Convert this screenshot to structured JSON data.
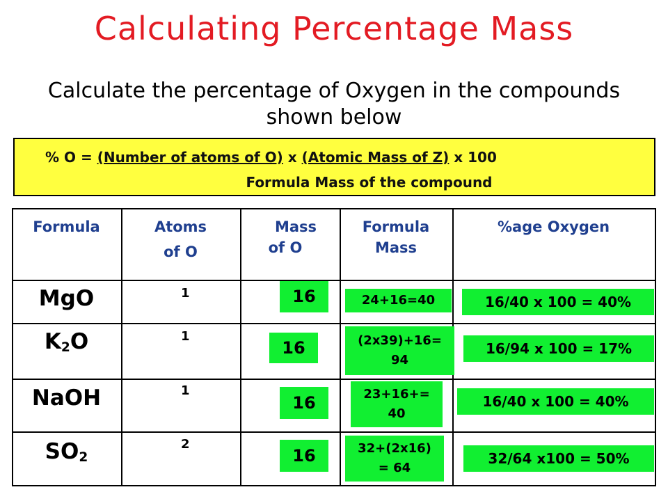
{
  "title": "Calculating Percentage Mass",
  "subtitle": "Calculate the percentage of Oxygen in the compounds shown below",
  "formula": {
    "prefix": "% O = ",
    "numerator_a": "(Number of atoms of O)",
    "times": " x ",
    "numerator_b": "(Atomic Mass of Z)",
    "suffix": " x 100",
    "denominator": "Formula Mass of the compound"
  },
  "table": {
    "headers": {
      "formula": "Formula",
      "atoms_l1": "Atoms",
      "atoms_l2": "of O",
      "mass_l1": "Mass",
      "mass_l2": "of O",
      "fmass_l1": "Formula",
      "fmass_l2": "Mass",
      "pct": "%age Oxygen"
    },
    "rows": [
      {
        "formula_base": "MgO",
        "formula_sub": "",
        "formula_tail": "",
        "atoms": "1",
        "mass": "16",
        "fmass_l1": "24+16=40",
        "fmass_l2": "",
        "pct": "16/40 x 100 = 40%"
      },
      {
        "formula_base": "K",
        "formula_sub": "2",
        "formula_tail": "O",
        "atoms": "1",
        "mass": "16",
        "fmass_l1": "(2x39)+16=",
        "fmass_l2": "94",
        "pct": "16/94 x 100 = 17%"
      },
      {
        "formula_base": "NaOH",
        "formula_sub": "",
        "formula_tail": "",
        "atoms": "1",
        "mass": "16",
        "fmass_l1": "23+16+=",
        "fmass_l2": "40",
        "pct": "16/40 x 100 = 40%"
      },
      {
        "formula_base": "SO",
        "formula_sub": "2",
        "formula_tail": "",
        "atoms": "2",
        "mass": "16",
        "fmass_l1": "32+(2x16)",
        "fmass_l2": "= 64",
        "pct": "32/64 x100 = 50%"
      }
    ]
  },
  "colors": {
    "title": "#e31b23",
    "highlight_box": "#ffff3f",
    "answer_box": "#11ef31",
    "header_text": "#1f3f8f"
  }
}
